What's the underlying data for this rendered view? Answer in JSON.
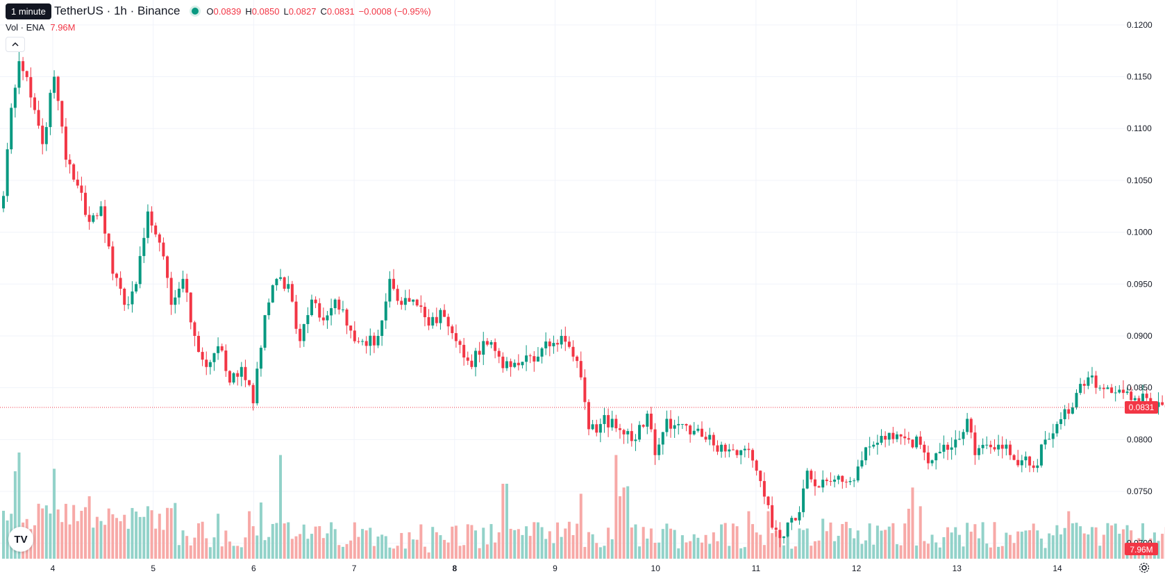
{
  "header": {
    "tooltip": "1 minute",
    "symbol_title": "TetherUS · 1h · Binance",
    "ohlc": {
      "open_label": "O",
      "open": "0.0839",
      "high_label": "H",
      "high": "0.0850",
      "low_label": "L",
      "low": "0.0827",
      "close_label": "C",
      "close": "0.0831",
      "change": "−0.0008 (−0.95%)"
    },
    "volume_label": "Vol · ENA",
    "volume_value": "7.96M"
  },
  "colors": {
    "up": "#089981",
    "down": "#f23645",
    "up_volume": "#92d2c9",
    "down_volume": "#f7a9a7",
    "grid": "#f0f3fa",
    "axis_text": "#131722"
  },
  "icons": {
    "collapse": "chevron-up-icon",
    "logo": "tradingview-logo-icon",
    "settings": "gear-icon"
  },
  "logo_text": "TV",
  "chart_data": {
    "type": "candlestick",
    "title": "",
    "xlabel": "",
    "ylabel": "",
    "ylim": [
      0.0665,
      0.1224
    ],
    "y_ticks": [
      "0.0700",
      "0.0750",
      "0.0800",
      "0.0850",
      "0.0900",
      "0.0950",
      "0.1000",
      "0.1050",
      "0.1100",
      "0.1150",
      "0.1200"
    ],
    "x_ticks": [
      {
        "label": "4",
        "day": 4
      },
      {
        "label": "5",
        "day": 5
      },
      {
        "label": "6",
        "day": 6
      },
      {
        "label": "7",
        "day": 7
      },
      {
        "label": "8",
        "day": 8
      },
      {
        "label": "9",
        "day": 9
      },
      {
        "label": "10",
        "day": 10
      },
      {
        "label": "11",
        "day": 11
      },
      {
        "label": "12",
        "day": 12
      },
      {
        "label": "13",
        "day": 13
      },
      {
        "label": "14",
        "day": 14
      }
    ],
    "bold_tick": "8",
    "first_day": 3.47,
    "bar_hours": 1,
    "last_price": "0.0831",
    "last_price_value": 0.0831,
    "volume_last": "7.96M",
    "volume_max": 1.0,
    "anchors": [
      [
        0,
        0.1035
      ],
      [
        2,
        0.112
      ],
      [
        4,
        0.1165
      ],
      [
        7,
        0.113
      ],
      [
        10,
        0.1085
      ],
      [
        13,
        0.115
      ],
      [
        16,
        0.107
      ],
      [
        19,
        0.1045
      ],
      [
        22,
        0.101
      ],
      [
        25,
        0.1025
      ],
      [
        28,
        0.096
      ],
      [
        31,
        0.093
      ],
      [
        34,
        0.095
      ],
      [
        37,
        0.102
      ],
      [
        40,
        0.099
      ],
      [
        43,
        0.093
      ],
      [
        46,
        0.0955
      ],
      [
        49,
        0.09
      ],
      [
        52,
        0.087
      ],
      [
        55,
        0.089
      ],
      [
        58,
        0.0855
      ],
      [
        61,
        0.087
      ],
      [
        64,
        0.0835
      ],
      [
        67,
        0.092
      ],
      [
        70,
        0.0955
      ],
      [
        73,
        0.095
      ],
      [
        76,
        0.0895
      ],
      [
        79,
        0.0935
      ],
      [
        82,
        0.0915
      ],
      [
        85,
        0.0935
      ],
      [
        88,
        0.091
      ],
      [
        92,
        0.0895
      ],
      [
        96,
        0.09
      ],
      [
        99,
        0.0955
      ],
      [
        102,
        0.093
      ],
      [
        105,
        0.0935
      ],
      [
        109,
        0.091
      ],
      [
        112,
        0.0925
      ],
      [
        116,
        0.0895
      ],
      [
        120,
        0.087
      ],
      [
        123,
        0.0895
      ],
      [
        127,
        0.088
      ],
      [
        130,
        0.087
      ],
      [
        133,
        0.0875
      ],
      [
        137,
        0.088
      ],
      [
        140,
        0.089
      ],
      [
        143,
        0.09
      ],
      [
        146,
        0.088
      ],
      [
        148,
        0.086
      ],
      [
        150,
        0.081
      ],
      [
        153,
        0.0815
      ],
      [
        156,
        0.082
      ],
      [
        159,
        0.0805
      ],
      [
        162,
        0.08
      ],
      [
        165,
        0.0825
      ],
      [
        167,
        0.0785
      ],
      [
        170,
        0.082
      ],
      [
        173,
        0.0815
      ],
      [
        176,
        0.0805
      ],
      [
        180,
        0.08
      ],
      [
        184,
        0.0795
      ],
      [
        188,
        0.0785
      ],
      [
        191,
        0.079
      ],
      [
        193,
        0.077
      ],
      [
        195,
        0.0745
      ],
      [
        197,
        0.0715
      ],
      [
        199,
        0.0705
      ],
      [
        201,
        0.072
      ],
      [
        204,
        0.073
      ],
      [
        206,
        0.077
      ],
      [
        208,
        0.0755
      ],
      [
        211,
        0.076
      ],
      [
        214,
        0.0765
      ],
      [
        217,
        0.076
      ],
      [
        220,
        0.078
      ],
      [
        223,
        0.0795
      ],
      [
        226,
        0.08
      ],
      [
        229,
        0.0805
      ],
      [
        232,
        0.08
      ],
      [
        235,
        0.0795
      ],
      [
        238,
        0.078
      ],
      [
        241,
        0.0795
      ],
      [
        244,
        0.08
      ],
      [
        247,
        0.082
      ],
      [
        249,
        0.0785
      ],
      [
        252,
        0.0795
      ],
      [
        255,
        0.0795
      ],
      [
        258,
        0.0785
      ],
      [
        261,
        0.078
      ],
      [
        263,
        0.0775
      ],
      [
        265,
        0.0775
      ],
      [
        267,
        0.08
      ],
      [
        270,
        0.0815
      ],
      [
        273,
        0.0825
      ],
      [
        275,
        0.0845
      ],
      [
        278,
        0.086
      ],
      [
        281,
        0.085
      ],
      [
        284,
        0.0845
      ],
      [
        287,
        0.0845
      ],
      [
        290,
        0.084
      ],
      [
        293,
        0.084
      ],
      [
        296,
        0.0836
      ],
      [
        298,
        0.0831
      ]
    ],
    "volume_spikes": [
      [
        3,
        0.7
      ],
      [
        4,
        0.85
      ],
      [
        13,
        0.72
      ],
      [
        22,
        0.5
      ],
      [
        37,
        0.42
      ],
      [
        40,
        0.36
      ],
      [
        55,
        0.36
      ],
      [
        63,
        0.38
      ],
      [
        66,
        0.45
      ],
      [
        71,
        0.83
      ],
      [
        109,
        0.05
      ],
      [
        128,
        0.6
      ],
      [
        129,
        0.6
      ],
      [
        148,
        0.52
      ],
      [
        157,
        0.83
      ],
      [
        158,
        0.5
      ],
      [
        159,
        0.57
      ],
      [
        160,
        0.58
      ],
      [
        188,
        0.26
      ],
      [
        191,
        0.38
      ],
      [
        196,
        0.38
      ],
      [
        210,
        0.32
      ],
      [
        232,
        0.4
      ],
      [
        233,
        0.57
      ],
      [
        235,
        0.42
      ],
      [
        273,
        0.38
      ],
      [
        276,
        0.26
      ]
    ]
  }
}
